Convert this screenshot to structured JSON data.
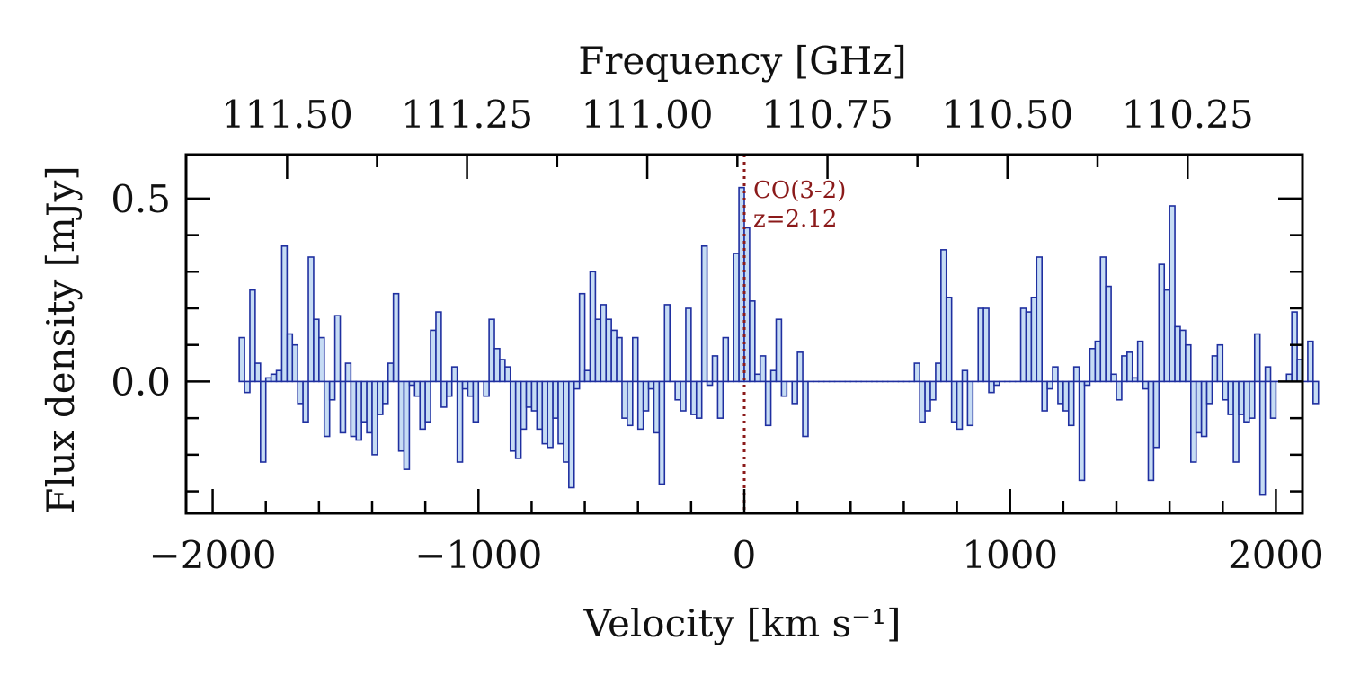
{
  "chart_data": {
    "type": "bar",
    "style": "step-histogram",
    "xlabel": "Velocity [km s⁻¹]",
    "ylabel": "Flux density [mJy]",
    "top_xlabel": "Frequency [GHz]",
    "xlim": [
      -2100,
      2100
    ],
    "ylim": [
      -0.36,
      0.62
    ],
    "x_ticks": [
      -2000,
      -1000,
      0,
      1000,
      2000
    ],
    "x_tick_labels": [
      "−2000",
      "−1000",
      "0",
      "1000",
      "2000"
    ],
    "y_ticks": [
      0.0,
      0.5
    ],
    "y_tick_labels": [
      "0.0",
      "0.5"
    ],
    "top_ticks": [
      {
        "velocity": -1720,
        "label": "111.50"
      },
      {
        "velocity": -1043,
        "label": "111.25"
      },
      {
        "velocity": -365,
        "label": "111.00"
      },
      {
        "velocity": 313,
        "label": "110.75"
      },
      {
        "velocity": 990,
        "label": "110.50"
      },
      {
        "velocity": 1668,
        "label": "110.25"
      }
    ],
    "bin_start": -1900,
    "bin_width": 20,
    "values": [
      0.12,
      -0.03,
      0.25,
      0.05,
      -0.22,
      0.01,
      0.02,
      0.03,
      0.37,
      0.13,
      0.1,
      -0.06,
      -0.11,
      0.34,
      0.17,
      0.12,
      -0.15,
      -0.05,
      0.18,
      -0.14,
      0.05,
      -0.15,
      -0.16,
      -0.11,
      -0.14,
      -0.2,
      -0.09,
      -0.06,
      0.05,
      0.24,
      -0.19,
      -0.24,
      -0.01,
      -0.04,
      -0.13,
      -0.11,
      0.14,
      0.19,
      -0.07,
      -0.04,
      0.04,
      -0.22,
      -0.02,
      -0.04,
      -0.11,
      0.0,
      -0.04,
      0.17,
      0.09,
      0.06,
      0.04,
      -0.19,
      -0.21,
      -0.13,
      -0.07,
      -0.08,
      -0.13,
      -0.17,
      -0.18,
      -0.1,
      -0.17,
      -0.22,
      -0.29,
      -0.02,
      0.24,
      0.03,
      0.3,
      0.17,
      0.21,
      0.17,
      0.14,
      0.12,
      -0.1,
      -0.12,
      0.12,
      -0.13,
      -0.08,
      -0.02,
      -0.14,
      -0.28,
      0.21,
      0.0,
      -0.05,
      -0.08,
      0.2,
      -0.09,
      -0.1,
      0.37,
      -0.01,
      0.07,
      -0.1,
      0.12,
      0.0,
      0.35,
      0.53,
      0.42,
      0.22,
      0.02,
      0.07,
      -0.12,
      0.03,
      0.17,
      -0.04,
      0.0,
      -0.06,
      0.08,
      -0.15,
      0.0,
      0.0,
      0.0,
      0.0,
      0.0,
      0.0,
      0.0,
      0.0,
      0.0,
      0.0,
      0.0,
      0.0,
      0.0,
      0.0,
      0.0,
      0.0,
      0.0,
      0.0,
      0.0,
      0.0,
      0.05,
      -0.11,
      -0.08,
      -0.05,
      0.05,
      0.36,
      0.23,
      -0.11,
      -0.13,
      0.03,
      -0.12,
      0.0,
      0.2,
      0.2,
      -0.03,
      -0.01,
      0.0,
      0.0,
      0.0,
      0.0,
      0.2,
      0.19,
      0.23,
      0.34,
      -0.08,
      -0.02,
      0.04,
      -0.06,
      -0.08,
      -0.12,
      0.04,
      -0.27,
      -0.01,
      0.09,
      0.11,
      0.34,
      0.26,
      0.02,
      -0.05,
      0.07,
      0.08,
      0.01,
      0.11,
      -0.02,
      -0.27,
      -0.18,
      0.32,
      0.25,
      0.48,
      0.15,
      0.14,
      0.1,
      -0.22,
      -0.14,
      -0.15,
      -0.06,
      0.07,
      0.1,
      -0.05,
      -0.09,
      -0.22,
      -0.09,
      -0.11,
      -0.1,
      0.13,
      -0.31,
      0.04,
      -0.1,
      0.0,
      0.0,
      0.02,
      0.19,
      0.06,
      0.0,
      0.11,
      -0.06
    ],
    "reference_line": {
      "x": 0,
      "style": "dotted",
      "color": "#8b1a1a"
    },
    "annotation": {
      "line1": "CO(3-2)",
      "line2": "z=2.12"
    },
    "colors": {
      "bar_fill": "#c6dcf4",
      "bar_edge": "#1f2fa0",
      "frame": "#000000"
    }
  }
}
